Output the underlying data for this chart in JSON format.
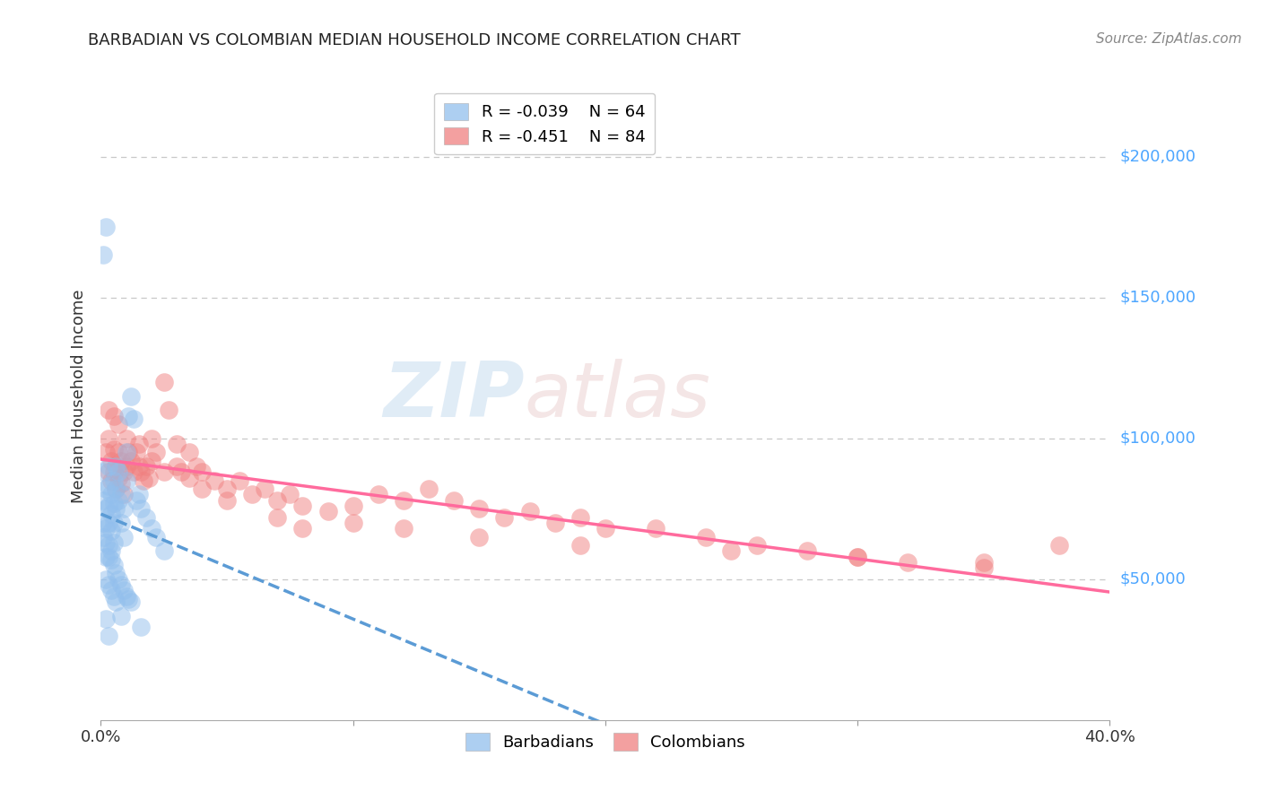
{
  "title": "BARBADIAN VS COLOMBIAN MEDIAN HOUSEHOLD INCOME CORRELATION CHART",
  "source": "Source: ZipAtlas.com",
  "ylabel": "Median Household Income",
  "xlim": [
    0.0,
    0.4
  ],
  "ylim": [
    0,
    230000
  ],
  "yticks": [
    50000,
    100000,
    150000,
    200000
  ],
  "ytick_labels": [
    "$50,000",
    "$100,000",
    "$150,000",
    "$200,000"
  ],
  "xticks": [
    0.0,
    0.1,
    0.2,
    0.3,
    0.4
  ],
  "xtick_labels": [
    "0.0%",
    "",
    "",
    "",
    "40.0%"
  ],
  "color_barbadian": "#92BFED",
  "color_colombian": "#F08080",
  "color_trend_barbadian": "#5B9BD5",
  "color_trend_colombian": "#FF6B9D",
  "color_axis_labels": "#4DA6FF",
  "watermark_zip": "ZIP",
  "watermark_atlas": "atlas",
  "background_color": "#FFFFFF",
  "grid_color": "#C8C8C8",
  "barbadian_x": [
    0.001,
    0.001,
    0.001,
    0.001,
    0.002,
    0.002,
    0.002,
    0.002,
    0.002,
    0.003,
    0.003,
    0.003,
    0.003,
    0.003,
    0.004,
    0.004,
    0.004,
    0.004,
    0.005,
    0.005,
    0.005,
    0.005,
    0.006,
    0.006,
    0.006,
    0.007,
    0.007,
    0.008,
    0.008,
    0.009,
    0.009,
    0.01,
    0.01,
    0.011,
    0.012,
    0.013,
    0.014,
    0.015,
    0.016,
    0.018,
    0.02,
    0.022,
    0.025,
    0.001,
    0.002,
    0.003,
    0.004,
    0.005,
    0.006,
    0.007,
    0.008,
    0.009,
    0.01,
    0.011,
    0.012,
    0.002,
    0.003,
    0.004,
    0.005,
    0.006,
    0.002,
    0.008,
    0.016,
    0.003
  ],
  "barbadian_y": [
    88000,
    78000,
    70000,
    65000,
    82000,
    75000,
    68000,
    63000,
    58000,
    90000,
    83000,
    76000,
    70000,
    62000,
    80000,
    73000,
    67000,
    60000,
    85000,
    77000,
    70000,
    63000,
    90000,
    82000,
    75000,
    88000,
    78000,
    80000,
    70000,
    75000,
    65000,
    95000,
    85000,
    108000,
    115000,
    107000,
    78000,
    80000,
    75000,
    72000,
    68000,
    65000,
    60000,
    165000,
    175000,
    58000,
    57000,
    55000,
    52000,
    50000,
    48000,
    46000,
    44000,
    43000,
    42000,
    50000,
    48000,
    46000,
    44000,
    42000,
    36000,
    37000,
    33000,
    30000
  ],
  "colombian_x": [
    0.002,
    0.003,
    0.003,
    0.004,
    0.004,
    0.005,
    0.005,
    0.006,
    0.006,
    0.007,
    0.007,
    0.008,
    0.008,
    0.009,
    0.009,
    0.01,
    0.01,
    0.011,
    0.012,
    0.013,
    0.014,
    0.015,
    0.016,
    0.017,
    0.018,
    0.019,
    0.02,
    0.022,
    0.025,
    0.027,
    0.03,
    0.032,
    0.035,
    0.038,
    0.04,
    0.045,
    0.05,
    0.055,
    0.06,
    0.065,
    0.07,
    0.075,
    0.08,
    0.09,
    0.1,
    0.11,
    0.12,
    0.13,
    0.14,
    0.15,
    0.16,
    0.17,
    0.18,
    0.19,
    0.2,
    0.22,
    0.24,
    0.26,
    0.28,
    0.3,
    0.32,
    0.35,
    0.38,
    0.003,
    0.005,
    0.007,
    0.015,
    0.02,
    0.025,
    0.03,
    0.035,
    0.04,
    0.05,
    0.07,
    0.08,
    0.1,
    0.12,
    0.15,
    0.19,
    0.25,
    0.3,
    0.35
  ],
  "colombian_y": [
    95000,
    100000,
    88000,
    92000,
    85000,
    96000,
    88000,
    90000,
    82000,
    95000,
    86000,
    92000,
    84000,
    88000,
    80000,
    100000,
    90000,
    95000,
    92000,
    88000,
    95000,
    90000,
    88000,
    85000,
    90000,
    86000,
    100000,
    95000,
    120000,
    110000,
    98000,
    88000,
    95000,
    90000,
    88000,
    85000,
    82000,
    85000,
    80000,
    82000,
    78000,
    80000,
    76000,
    74000,
    76000,
    80000,
    78000,
    82000,
    78000,
    75000,
    72000,
    74000,
    70000,
    72000,
    68000,
    68000,
    65000,
    62000,
    60000,
    58000,
    56000,
    54000,
    62000,
    110000,
    108000,
    105000,
    98000,
    92000,
    88000,
    90000,
    86000,
    82000,
    78000,
    72000,
    68000,
    70000,
    68000,
    65000,
    62000,
    60000,
    58000,
    56000
  ]
}
